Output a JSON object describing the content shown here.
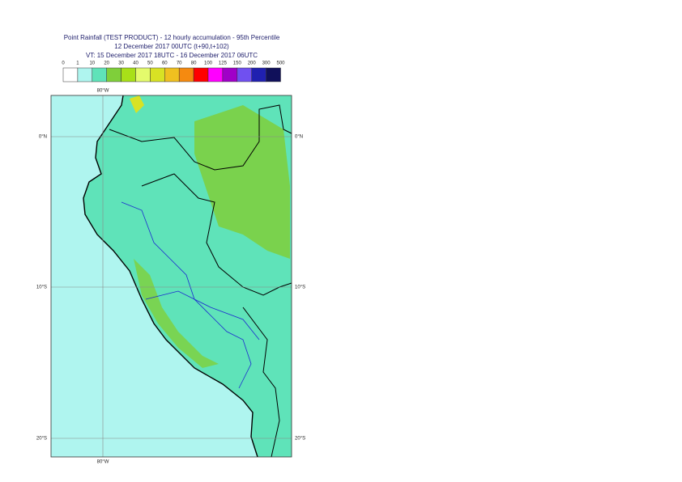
{
  "header": {
    "title": "Point Rainfall (TEST PRODUCT) - 12 hourly accumulation - 95th Percentile",
    "run": "12 December 2017 00UTC (t+90,t+102)",
    "validity": "VT: 15 December 2017 18UTC - 16 December 2017 06UTC"
  },
  "legend": {
    "labels": [
      0,
      1,
      10,
      20,
      30,
      40,
      50,
      60,
      70,
      80,
      100,
      125,
      150,
      200,
      300,
      500
    ],
    "colors": [
      "#ffffff",
      "#aff5ef",
      "#5fe3b9",
      "#7fcf3a",
      "#a8e018",
      "#e4fb6c",
      "#d8e224",
      "#f0c020",
      "#f58a10",
      "#ff0000",
      "#ff00ff",
      "#a000c8",
      "#7050f0",
      "#2020b0",
      "#10105a"
    ]
  },
  "map": {
    "lat_labels": [
      "0°N",
      "10°S",
      "20°S"
    ],
    "lon_label": "80°W"
  }
}
